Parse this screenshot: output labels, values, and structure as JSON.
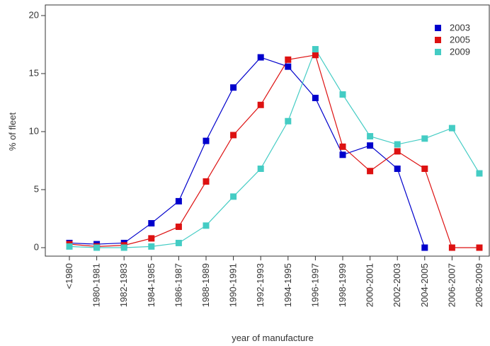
{
  "chart_data": {
    "type": "line",
    "title": "",
    "xlabel": "year of manufacture",
    "ylabel": "% of fleet",
    "categories": [
      "<1980",
      "1980-1981",
      "1982-1983",
      "1984-1985",
      "1986-1987",
      "1988-1989",
      "1990-1991",
      "1992-1993",
      "1994-1995",
      "1996-1997",
      "1998-1999",
      "2000-2001",
      "2002-2003",
      "2004-2005",
      "2006-2007",
      "2008-2009"
    ],
    "ylim": [
      0,
      20
    ],
    "yticks": [
      0,
      5,
      10,
      15,
      20
    ],
    "legend_position": "top-right",
    "grid": false,
    "series": [
      {
        "name": "2003",
        "color": "#0000cc",
        "values": [
          0.4,
          0.3,
          0.4,
          2.1,
          4.0,
          9.2,
          13.8,
          16.4,
          15.6,
          12.9,
          8.0,
          8.8,
          6.8,
          0.0,
          null,
          null
        ]
      },
      {
        "name": "2005",
        "color": "#dd1111",
        "values": [
          0.3,
          0.1,
          0.2,
          0.8,
          1.8,
          5.7,
          9.7,
          12.3,
          16.2,
          16.6,
          8.7,
          6.6,
          8.3,
          6.8,
          0.0,
          0.0
        ]
      },
      {
        "name": "2009",
        "color": "#44ccc4",
        "values": [
          0.1,
          0.0,
          0.0,
          0.1,
          0.4,
          1.9,
          4.4,
          6.8,
          10.9,
          17.1,
          13.2,
          9.6,
          8.9,
          9.4,
          10.3,
          6.4
        ]
      }
    ]
  }
}
